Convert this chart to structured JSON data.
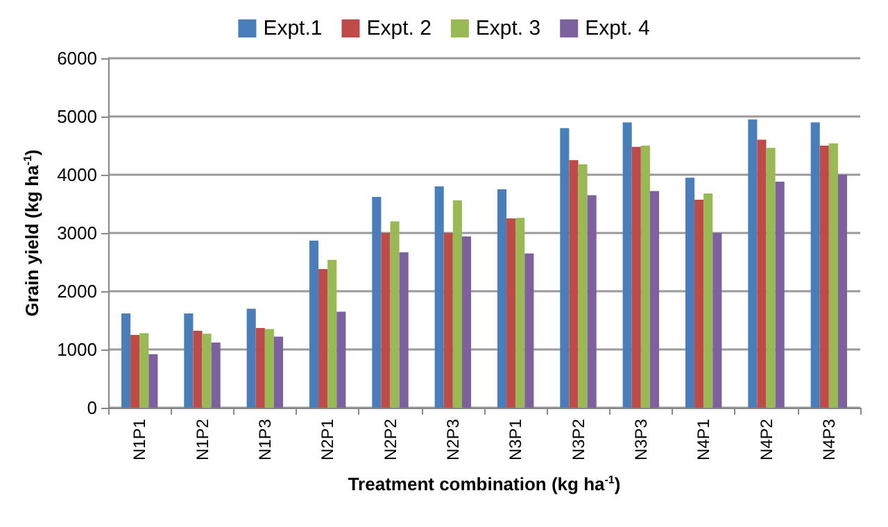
{
  "chart_data": {
    "type": "bar",
    "xlabel": "Treatment combination (kg ha$^{-1}$)",
    "ylabel": "Grain yield (kg ha$^{-1}$)",
    "categories": [
      "N1P1",
      "N1P2",
      "N1P3",
      "N2P1",
      "N2P2",
      "N2P3",
      "N3P1",
      "N3P2",
      "N3P3",
      "N4P1",
      "N4P2",
      "N4P3"
    ],
    "series": [
      {
        "name": "Expt.1",
        "color": "#4a7ebb",
        "values": [
          1620,
          1620,
          1700,
          2870,
          3620,
          3800,
          3750,
          4800,
          4900,
          3950,
          4950,
          4900
        ]
      },
      {
        "name": "Expt. 2",
        "color": "#be4b48",
        "values": [
          1250,
          1320,
          1370,
          2380,
          3000,
          3000,
          3250,
          4250,
          4480,
          3570,
          4600,
          4500
        ]
      },
      {
        "name": "Expt. 3",
        "color": "#98b954",
        "values": [
          1280,
          1270,
          1350,
          2540,
          3200,
          3560,
          3260,
          4180,
          4500,
          3680,
          4460,
          4540
        ]
      },
      {
        "name": "Expt. 4",
        "color": "#7d60a0",
        "values": [
          920,
          1120,
          1220,
          1650,
          2670,
          2940,
          2650,
          3650,
          3720,
          3000,
          3880,
          4000
        ]
      }
    ],
    "ylim": [
      0,
      6000
    ],
    "yticks": [
      0,
      1000,
      2000,
      3000,
      4000,
      5000,
      6000
    ],
    "grid": "y",
    "legend": "top"
  }
}
